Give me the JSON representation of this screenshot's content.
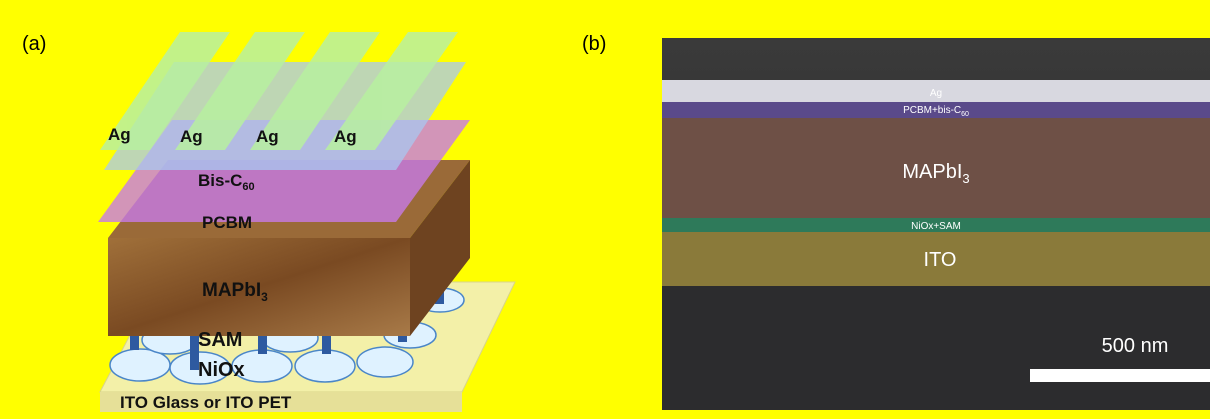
{
  "panel_a": {
    "label": "(a)",
    "layers": {
      "ag": [
        "Ag",
        "Ag",
        "Ag",
        "Ag"
      ],
      "bis_c60": {
        "text": "Bis-C",
        "sub": "60"
      },
      "pcbm": "PCBM",
      "mapbi3": {
        "text": "MAPbI",
        "sub": "3"
      },
      "sam": "SAM",
      "niox": "NiOx",
      "substrate": "ITO Glass or ITO PET"
    }
  },
  "panel_b": {
    "label": "(b)",
    "layers": {
      "ag": "Ag",
      "pcbm_bis": {
        "text": "PCBM+bis-C",
        "sub": "60"
      },
      "mapbi3": {
        "text": "MAPbI",
        "sub": "3"
      },
      "niox_sam": "NiOx+SAM",
      "ito": "ITO"
    },
    "scale_bar": "500 nm"
  }
}
